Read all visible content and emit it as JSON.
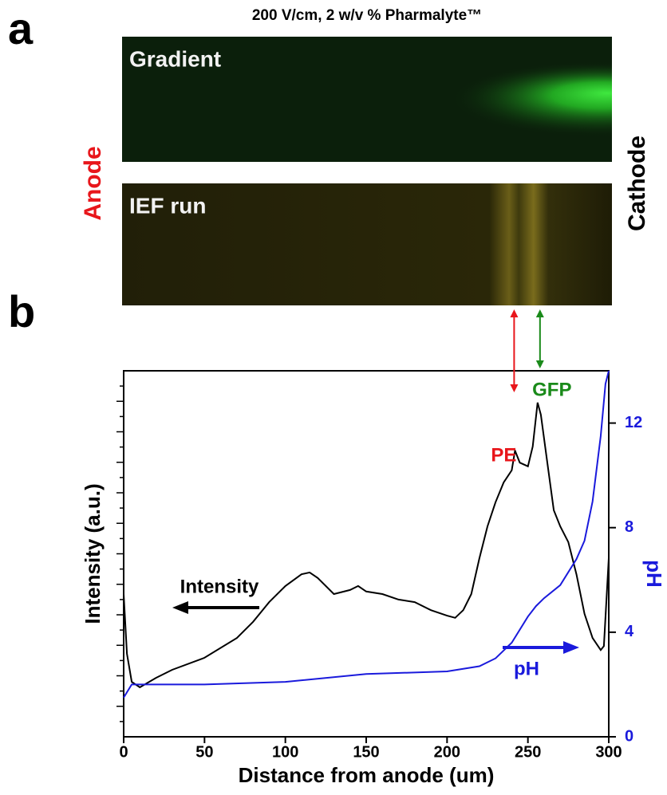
{
  "figure": {
    "panel_a": "a",
    "panel_b": "b",
    "title": "200 V/cm, 2 w/v % Pharmalyte™",
    "anode": "Anode",
    "cathode": "Cathode",
    "image_labels": [
      "Gradient",
      "IEF run"
    ]
  },
  "chart_data": {
    "type": "line",
    "xlabel": "Distance from anode (um)",
    "ylabel": "Intensity (a.u.)",
    "y2label": "pH",
    "xlim": [
      0,
      300
    ],
    "xticks": [
      0,
      50,
      100,
      150,
      200,
      250,
      300
    ],
    "ylim": [
      0,
      100
    ],
    "y2lim": [
      0,
      14
    ],
    "y2ticks": [
      0,
      4,
      8,
      12
    ],
    "peak_labels": [
      {
        "text": "PE",
        "x": 240,
        "color": "#e8161b"
      },
      {
        "text": "GFP",
        "x": 256,
        "color": "#1a8a1a"
      }
    ],
    "series": [
      {
        "name": "Intensity",
        "color": "#000000",
        "axis": "y",
        "x": [
          0,
          2,
          5,
          10,
          20,
          30,
          50,
          70,
          80,
          90,
          100,
          110,
          115,
          120,
          130,
          140,
          145,
          150,
          160,
          170,
          180,
          190,
          200,
          205,
          210,
          215,
          220,
          225,
          230,
          235,
          240,
          242,
          245,
          250,
          253,
          256,
          258,
          262,
          266,
          270,
          275,
          280,
          285,
          290,
          295,
          297,
          300
        ],
        "values": [
          39.0,
          22.7,
          15.0,
          13.5,
          16.1,
          18.3,
          21.6,
          27.0,
          31.4,
          36.8,
          41.2,
          44.4,
          44.9,
          43.4,
          39.0,
          40.1,
          41.2,
          39.7,
          39.0,
          37.5,
          36.8,
          34.6,
          33.1,
          32.5,
          34.6,
          39.0,
          48.8,
          57.5,
          64.1,
          69.5,
          72.8,
          78.2,
          74.9,
          73.9,
          79.3,
          91.3,
          88.0,
          74.9,
          61.9,
          57.5,
          53.2,
          44.4,
          33.6,
          27.0,
          23.7,
          24.8,
          48.8
        ]
      },
      {
        "name": "pH",
        "color": "#1a1adc",
        "axis": "y2",
        "x": [
          0,
          5,
          20,
          50,
          100,
          150,
          200,
          220,
          230,
          240,
          250,
          255,
          260,
          270,
          280,
          285,
          290,
          295,
          298,
          300
        ],
        "values": [
          1.5,
          2.0,
          2.0,
          2.0,
          2.1,
          2.4,
          2.5,
          2.7,
          3.0,
          3.6,
          4.6,
          5.0,
          5.3,
          5.8,
          6.8,
          7.5,
          9.0,
          11.5,
          13.5,
          14
        ]
      }
    ]
  }
}
